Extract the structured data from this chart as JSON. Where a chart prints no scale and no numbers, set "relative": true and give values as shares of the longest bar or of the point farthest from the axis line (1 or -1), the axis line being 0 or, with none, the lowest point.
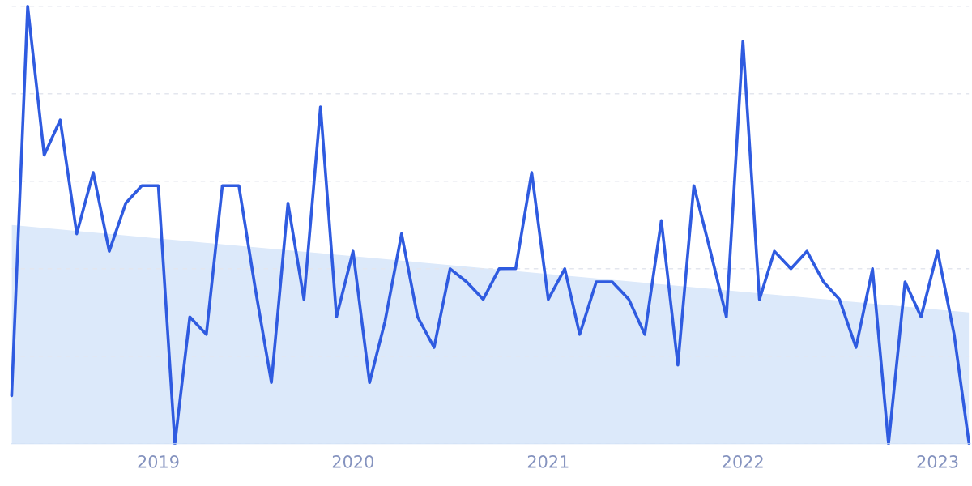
{
  "chart_data": {
    "type": "line",
    "relative": true,
    "x": [
      "2018-04",
      "2018-05",
      "2018-06",
      "2018-07",
      "2018-08",
      "2018-09",
      "2018-10",
      "2018-11",
      "2018-12",
      "2019-01",
      "2019-02",
      "2019-03",
      "2019-04",
      "2019-05",
      "2019-06",
      "2019-07",
      "2019-08",
      "2019-09",
      "2019-10",
      "2019-11",
      "2019-12",
      "2020-01",
      "2020-02",
      "2020-03",
      "2020-04",
      "2020-05",
      "2020-06",
      "2020-07",
      "2020-08",
      "2020-09",
      "2020-10",
      "2020-11",
      "2020-12",
      "2021-01",
      "2021-02",
      "2021-03",
      "2021-04",
      "2021-05",
      "2021-06",
      "2021-07",
      "2021-08",
      "2021-09",
      "2021-10",
      "2021-11",
      "2021-12",
      "2022-01",
      "2022-02",
      "2022-03",
      "2022-04",
      "2022-05",
      "2022-06",
      "2022-07",
      "2022-08",
      "2022-09",
      "2022-10",
      "2022-11",
      "2022-12",
      "2023-01",
      "2023-02",
      "2023-03"
    ],
    "xlim": [
      "2018-04",
      "2023-03"
    ],
    "xticks": [
      "2019",
      "2020",
      "2021",
      "2022",
      "2023"
    ],
    "grid": "y",
    "series": [
      {
        "type": "area",
        "color": "#dce9fa",
        "x": [
          "2018-04",
          "2023-03"
        ],
        "values": [
          0.5,
          0.3
        ]
      },
      {
        "color": "#2f5be0",
        "values": [
          0.11,
          1.0,
          0.66,
          0.74,
          0.48,
          0.62,
          0.44,
          0.55,
          0.59,
          0.59,
          0,
          0.29,
          0.25,
          0.59,
          0.59,
          0.36,
          0.14,
          0.55,
          0.33,
          0.77,
          0.29,
          0.44,
          0.14,
          0.28,
          0.48,
          0.29,
          0.22,
          0.4,
          0.37,
          0.33,
          0.4,
          0.4,
          0.62,
          0.33,
          0.4,
          0.25,
          0.37,
          0.37,
          0.33,
          0.25,
          0.51,
          0.18,
          0.59,
          0.44,
          0.29,
          0.92,
          0.33,
          0.44,
          0.4,
          0.44,
          0.37,
          0.33,
          0.22,
          0.4,
          0,
          0.37,
          0.29,
          0.44,
          0.25,
          0
        ]
      }
    ]
  }
}
